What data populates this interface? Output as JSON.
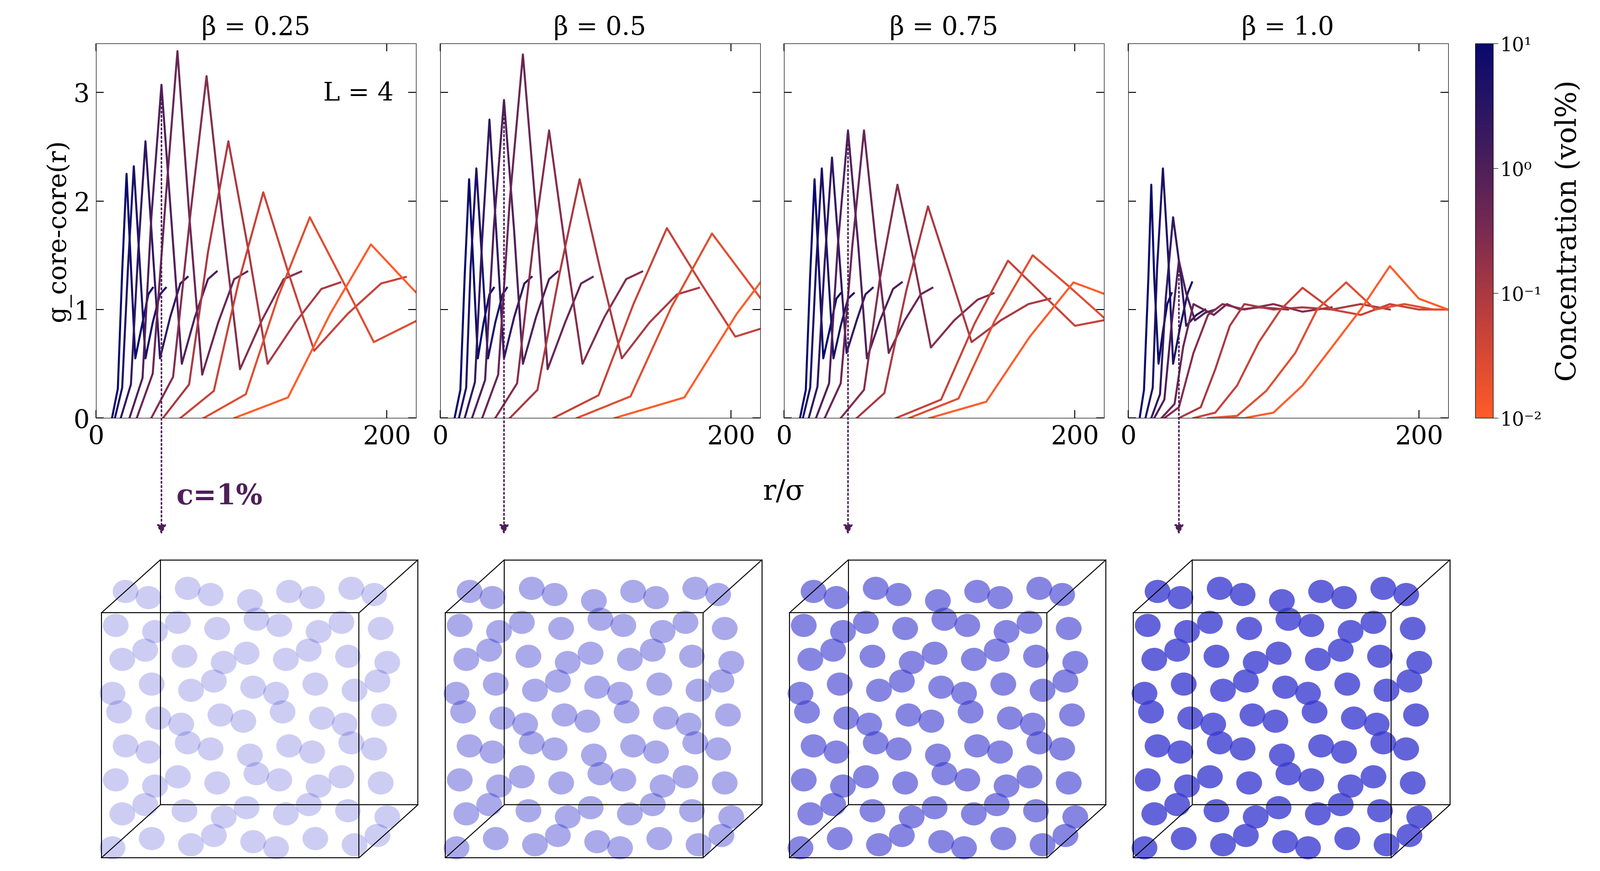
{
  "chart_data": [
    {
      "type": "line",
      "title": "β = 0.25",
      "annotation": "L = 4",
      "xlim": [
        0,
        220
      ],
      "xticks": [
        0,
        200
      ],
      "ylim": [
        0,
        3.45
      ],
      "yticks": [
        0,
        1,
        2,
        3
      ],
      "series": [
        {
          "concentration": 10,
          "x": [
            11,
            15,
            18,
            21,
            24,
            27,
            32,
            36,
            39
          ],
          "values": [
            0,
            0.27,
            1.35,
            2.25,
            1.4,
            0.55,
            0.88,
            1.14,
            1.2
          ]
        },
        {
          "concentration": 5,
          "x": [
            13,
            18,
            22,
            26,
            30,
            34,
            39,
            44,
            48
          ],
          "values": [
            0,
            0.28,
            1.39,
            2.32,
            1.44,
            0.55,
            0.88,
            1.14,
            1.2
          ]
        },
        {
          "concentration": 2.5,
          "x": [
            17,
            24,
            29,
            34,
            39,
            44,
            51,
            58,
            63
          ],
          "values": [
            0,
            0.31,
            1.53,
            2.55,
            1.55,
            0.55,
            0.93,
            1.24,
            1.3
          ]
        },
        {
          "concentration": 1,
          "x": [
            23,
            32,
            38,
            45,
            52,
            59,
            68,
            77,
            83
          ],
          "values": [
            0,
            0.37,
            1.84,
            3.07,
            1.79,
            0.5,
            0.93,
            1.28,
            1.35
          ]
        },
        {
          "concentration": 0.5,
          "x": [
            28,
            39,
            48,
            56,
            64,
            73,
            84,
            95,
            104
          ],
          "values": [
            0,
            0.41,
            2.03,
            3.38,
            1.89,
            0.4,
            0.88,
            1.28,
            1.35
          ]
        },
        {
          "concentration": 0.25,
          "x": [
            38,
            53,
            65,
            76,
            87,
            99,
            114,
            129,
            141
          ],
          "values": [
            0,
            0.38,
            1.89,
            3.15,
            1.8,
            0.45,
            0.9,
            1.28,
            1.35
          ]
        },
        {
          "concentration": 0.1,
          "x": [
            46,
            64,
            77,
            91,
            105,
            118,
            137,
            155,
            168
          ],
          "values": [
            0,
            0.31,
            1.53,
            2.55,
            1.53,
            0.5,
            0.88,
            1.19,
            1.25
          ]
        },
        {
          "concentration": 0.05,
          "x": [
            58,
            81,
            98,
            115,
            132,
            150,
            173,
            196,
            213
          ],
          "values": [
            0,
            0.25,
            1.25,
            2.08,
            1.35,
            0.62,
            0.96,
            1.24,
            1.3
          ]
        },
        {
          "concentration": 0.025,
          "x": [
            74,
            103,
            125,
            147,
            169,
            191,
            221,
            250,
            272
          ],
          "values": [
            0,
            0.22,
            1.11,
            1.85,
            1.28,
            0.7,
            0.9,
            1.05,
            1.1
          ]
        },
        {
          "concentration": 0.01,
          "x": [
            95,
            132,
            161,
            189,
            217,
            246
          ],
          "values": [
            0,
            0.19,
            0.96,
            1.6,
            1.2,
            0.8
          ]
        }
      ]
    },
    {
      "type": "line",
      "title": "β = 0.5",
      "tick_labels": "x",
      "xlim": [
        0,
        220
      ],
      "xticks": [
        0,
        200
      ],
      "ylim": [
        0,
        3.45
      ],
      "yticks": [
        0,
        1,
        2,
        3
      ],
      "series": [
        {
          "concentration": 10,
          "x": [
            10,
            14,
            17,
            20,
            23,
            26,
            30,
            34,
            37
          ],
          "values": [
            0,
            0.26,
            1.32,
            2.2,
            1.38,
            0.55,
            0.88,
            1.14,
            1.2
          ]
        },
        {
          "concentration": 5,
          "x": [
            13,
            18,
            21,
            25,
            29,
            33,
            38,
            43,
            46
          ],
          "values": [
            0,
            0.28,
            1.38,
            2.3,
            1.43,
            0.55,
            0.88,
            1.14,
            1.2
          ]
        },
        {
          "concentration": 2.5,
          "x": [
            17,
            24,
            29,
            34,
            39,
            44,
            51,
            58,
            63
          ],
          "values": [
            0,
            0.33,
            1.65,
            2.75,
            1.65,
            0.55,
            0.93,
            1.24,
            1.3
          ]
        },
        {
          "concentration": 1,
          "x": [
            22,
            31,
            37,
            44,
            51,
            57,
            66,
            75,
            81
          ],
          "values": [
            0,
            0.35,
            1.76,
            2.93,
            1.72,
            0.5,
            0.93,
            1.28,
            1.35
          ]
        },
        {
          "concentration": 0.5,
          "x": [
            29,
            40,
            48,
            57,
            66,
            74,
            86,
            97,
            105
          ],
          "values": [
            0,
            0.4,
            2.01,
            3.35,
            1.9,
            0.45,
            0.88,
            1.24,
            1.3
          ]
        },
        {
          "concentration": 0.25,
          "x": [
            38,
            53,
            64,
            75,
            86,
            98,
            113,
            128,
            139
          ],
          "values": [
            0,
            0.32,
            1.59,
            2.65,
            1.58,
            0.5,
            0.93,
            1.28,
            1.35
          ]
        },
        {
          "concentration": 0.1,
          "x": [
            48,
            67,
            82,
            96,
            110,
            125,
            144,
            163,
            178
          ],
          "values": [
            0,
            0.26,
            1.32,
            2.2,
            1.38,
            0.55,
            0.88,
            1.14,
            1.2
          ]
        },
        {
          "concentration": 0.05,
          "x": [
            78,
            109,
            133,
            156,
            179,
            203,
            234
          ],
          "values": [
            0,
            0.21,
            1.05,
            1.75,
            1.25,
            0.75,
            0.88
          ]
        },
        {
          "concentration": 0.025,
          "x": [
            94,
            131,
            159,
            187,
            215,
            243
          ],
          "values": [
            0,
            0.2,
            1.02,
            1.7,
            1.2,
            0.7
          ]
        },
        {
          "concentration": 0.01,
          "x": [
            120,
            168,
            204,
            240
          ],
          "values": [
            0,
            0.19,
            0.96,
            1.6
          ]
        }
      ]
    },
    {
      "type": "line",
      "title": "β = 0.75",
      "tick_labels": "x",
      "xlim": [
        0,
        220
      ],
      "xticks": [
        0,
        200
      ],
      "ylim": [
        0,
        3.45
      ],
      "yticks": [
        0,
        1,
        2,
        3
      ],
      "series": [
        {
          "concentration": 10,
          "x": [
            11,
            15,
            18,
            21,
            24,
            27,
            32,
            36,
            39
          ],
          "values": [
            0,
            0.26,
            1.32,
            2.2,
            1.38,
            0.55,
            0.85,
            1.1,
            1.15
          ]
        },
        {
          "concentration": 5,
          "x": [
            13,
            18,
            22,
            26,
            30,
            34,
            39,
            44,
            48
          ],
          "values": [
            0,
            0.28,
            1.38,
            2.3,
            1.43,
            0.55,
            0.85,
            1.1,
            1.15
          ]
        },
        {
          "concentration": 2.5,
          "x": [
            17,
            23,
            28,
            33,
            38,
            43,
            50,
            56,
            61
          ],
          "values": [
            0,
            0.29,
            1.44,
            2.4,
            1.5,
            0.6,
            0.9,
            1.14,
            1.2
          ]
        },
        {
          "concentration": 1,
          "x": [
            22,
            31,
            37,
            44,
            51,
            57,
            66,
            75,
            81
          ],
          "values": [
            0,
            0.32,
            1.59,
            2.65,
            1.6,
            0.55,
            0.9,
            1.19,
            1.25
          ]
        },
        {
          "concentration": 0.5,
          "x": [
            28,
            39,
            47,
            55,
            63,
            72,
            83,
            94,
            102
          ],
          "values": [
            0,
            0.32,
            1.59,
            2.65,
            1.63,
            0.6,
            0.9,
            1.14,
            1.2
          ]
        },
        {
          "concentration": 0.25,
          "x": [
            39,
            55,
            66,
            78,
            90,
            101,
            117,
            133,
            144
          ],
          "values": [
            0,
            0.26,
            1.29,
            2.15,
            1.4,
            0.65,
            0.9,
            1.09,
            1.15
          ]
        },
        {
          "concentration": 0.1,
          "x": [
            50,
            69,
            84,
            99,
            114,
            129,
            149,
            168,
            183
          ],
          "values": [
            0,
            0.23,
            1.17,
            1.95,
            1.33,
            0.7,
            0.9,
            1.05,
            1.1
          ]
        },
        {
          "concentration": 0.05,
          "x": [
            77,
            108,
            131,
            154,
            177,
            200,
            231
          ],
          "values": [
            0,
            0.17,
            0.87,
            1.45,
            1.15,
            0.85,
            0.93
          ]
        },
        {
          "concentration": 0.025,
          "x": [
            86,
            120,
            145,
            171,
            197,
            222
          ],
          "values": [
            0,
            0.18,
            0.9,
            1.5,
            1.2,
            0.9
          ]
        },
        {
          "concentration": 0.01,
          "x": [
            100,
            139,
            169,
            199,
            229
          ],
          "values": [
            0,
            0.15,
            0.75,
            1.25,
            1.1
          ]
        }
      ]
    },
    {
      "type": "line",
      "title": "β = 1.0",
      "tick_labels": "x",
      "xlim": [
        0,
        220
      ],
      "xticks": [
        0,
        200
      ],
      "ylim": [
        0,
        3.45
      ],
      "yticks": [
        0,
        1,
        2,
        3
      ],
      "series": [
        {
          "concentration": 10,
          "x": [
            8,
            11,
            14,
            16,
            18,
            21,
            24,
            27,
            30
          ],
          "values": [
            0,
            0.26,
            1.29,
            2.15,
            1.3,
            0.5,
            0.8,
            1.05,
            1.15
          ]
        },
        {
          "concentration": 5,
          "x": [
            12,
            17,
            20,
            24,
            28,
            31,
            36,
            41,
            44
          ],
          "values": [
            0,
            0.28,
            1.38,
            2.3,
            1.4,
            0.5,
            0.85,
            1.15,
            1.25
          ]
        },
        {
          "concentration": 2.5,
          "x": [
            16,
            22,
            26,
            31,
            36,
            40,
            47,
            53
          ],
          "values": [
            0,
            0.22,
            1.11,
            1.85,
            1.35,
            0.85,
            0.95,
            1.0
          ]
        },
        {
          "concentration": 1,
          "x": [
            18,
            25,
            30,
            35,
            40,
            46,
            53,
            60
          ],
          "values": [
            0,
            0.17,
            0.87,
            1.45,
            1.15,
            0.9,
            0.97,
            1.0
          ]
        },
        {
          "concentration": 0.5,
          "x": [
            23,
            32,
            38,
            45,
            52,
            59,
            68,
            77,
            90,
            110
          ],
          "values": [
            0,
            0.13,
            0.66,
            1.05,
            1.0,
            0.95,
            1.05,
            1.0,
            1.02,
            1.0
          ]
        },
        {
          "concentration": 0.25,
          "x": [
            25,
            35,
            45,
            55,
            65,
            80,
            100,
            120,
            140
          ],
          "values": [
            0,
            0.1,
            0.6,
            0.95,
            1.05,
            1.0,
            1.05,
            0.98,
            1.02
          ]
        },
        {
          "concentration": 0.1,
          "x": [
            35,
            50,
            60,
            70,
            80,
            100,
            120,
            140,
            160,
            180
          ],
          "values": [
            0,
            0.1,
            0.45,
            0.85,
            1.05,
            1.0,
            1.02,
            1.0,
            1.05,
            1.0
          ]
        },
        {
          "concentration": 0.05,
          "x": [
            45,
            60,
            75,
            90,
            105,
            120,
            140,
            160,
            180,
            200,
            220
          ],
          "values": [
            0,
            0.05,
            0.3,
            0.7,
            1.0,
            1.2,
            1.0,
            0.95,
            1.05,
            1.0,
            1.0
          ]
        },
        {
          "concentration": 0.025,
          "x": [
            55,
            75,
            95,
            115,
            130,
            150,
            170,
            190,
            210,
            220
          ],
          "values": [
            0,
            0.02,
            0.25,
            0.6,
            1.0,
            1.25,
            1.0,
            1.05,
            1.0,
            1.0
          ]
        },
        {
          "concentration": 0.01,
          "x": [
            60,
            80,
            100,
            120,
            140,
            160,
            180,
            200,
            220
          ],
          "values": [
            0,
            0,
            0.05,
            0.3,
            0.65,
            1.0,
            1.4,
            1.1,
            1.0
          ]
        }
      ]
    }
  ],
  "x_label": "r/σ",
  "y_label": "g_core-core(r)",
  "snapshot_label": "c=1%",
  "snapshot_concentration": 1,
  "colorbar": {
    "label": "Concentration (vol%)",
    "log": true,
    "range": [
      0.01,
      10
    ],
    "ticks": [
      {
        "value": 0.01,
        "label": "10⁻²"
      },
      {
        "value": 0.1,
        "label": "10⁻¹"
      },
      {
        "value": 1,
        "label": "10⁰"
      },
      {
        "value": 10,
        "label": "10¹"
      }
    ],
    "colors": [
      "#ff5b28",
      "#c2403a",
      "#7a2a50",
      "#3a1a5e",
      "#08096e"
    ]
  }
}
